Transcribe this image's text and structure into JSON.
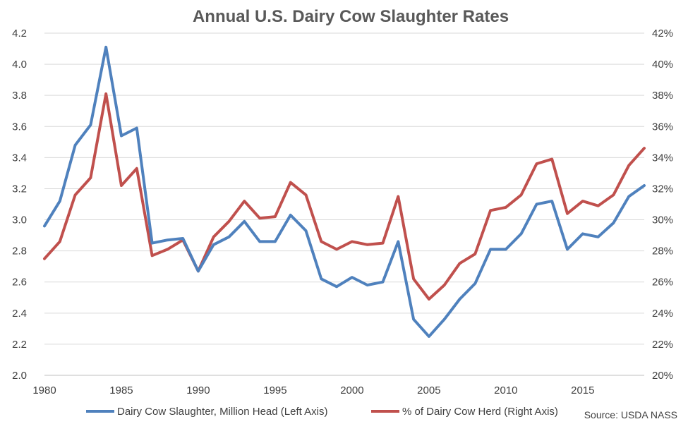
{
  "chart_data": {
    "type": "line",
    "title": "Annual U.S. Dairy Cow Slaughter Rates",
    "source": "Source: USDA NASS",
    "x": [
      1980,
      1981,
      1982,
      1983,
      1984,
      1985,
      1986,
      1987,
      1988,
      1989,
      1990,
      1991,
      1992,
      1993,
      1994,
      1995,
      1996,
      1997,
      1998,
      1999,
      2000,
      2001,
      2002,
      2003,
      2004,
      2005,
      2006,
      2007,
      2008,
      2009,
      2010,
      2011,
      2012,
      2013,
      2014,
      2015,
      2016,
      2017,
      2018,
      2019
    ],
    "x_ticks": [
      1980,
      1985,
      1990,
      1995,
      2000,
      2005,
      2010,
      2015
    ],
    "y_left": {
      "min": 2.0,
      "max": 4.2,
      "ticks": [
        "2.0",
        "2.2",
        "2.4",
        "2.6",
        "2.8",
        "3.0",
        "3.2",
        "3.4",
        "3.6",
        "3.8",
        "4.0",
        "4.2"
      ]
    },
    "y_right": {
      "min": 20,
      "max": 42,
      "ticks": [
        "20%",
        "22%",
        "24%",
        "26%",
        "28%",
        "30%",
        "32%",
        "34%",
        "36%",
        "38%",
        "40%",
        "42%"
      ]
    },
    "grid": "horizontal",
    "legend_position": "bottom",
    "series": [
      {
        "name": "Dairy Cow Slaughter, Million Head (Left Axis)",
        "axis": "left",
        "color": "#4f81bd",
        "values": [
          2.96,
          3.12,
          3.48,
          3.61,
          4.11,
          3.54,
          3.59,
          2.85,
          2.87,
          2.88,
          2.67,
          2.84,
          2.89,
          2.99,
          2.86,
          2.86,
          3.03,
          2.93,
          2.62,
          2.57,
          2.63,
          2.58,
          2.6,
          2.86,
          2.36,
          2.25,
          2.36,
          2.49,
          2.59,
          2.81,
          2.81,
          2.91,
          3.1,
          3.12,
          2.81,
          2.91,
          2.89,
          2.98,
          3.15,
          3.22
        ]
      },
      {
        "name": "% of Dairy Cow Herd (Right Axis)",
        "axis": "right",
        "color": "#c0504d",
        "values": [
          27.5,
          28.6,
          31.6,
          32.7,
          38.1,
          32.2,
          33.3,
          27.7,
          28.1,
          28.7,
          26.7,
          28.9,
          29.9,
          31.2,
          30.1,
          30.2,
          32.4,
          31.6,
          28.6,
          28.1,
          28.6,
          28.4,
          28.5,
          31.5,
          26.2,
          24.9,
          25.8,
          27.2,
          27.8,
          30.6,
          30.8,
          31.6,
          33.6,
          33.9,
          30.4,
          31.2,
          30.9,
          31.6,
          33.5,
          34.6
        ]
      }
    ]
  }
}
